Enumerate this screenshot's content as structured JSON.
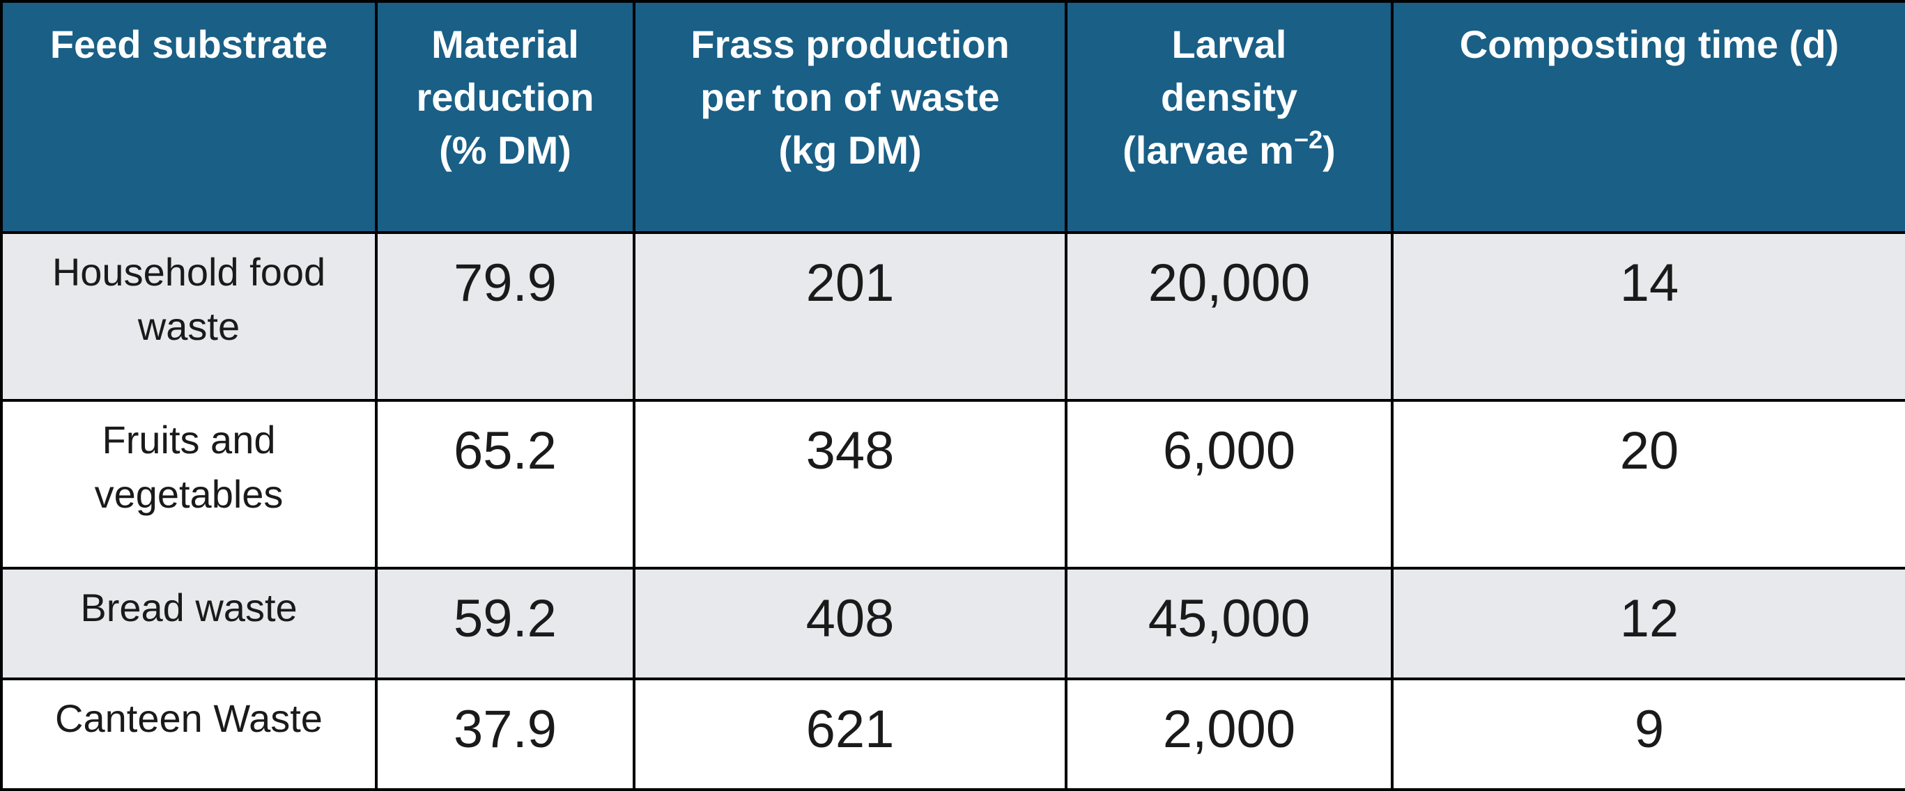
{
  "table": {
    "headers": [
      "Feed substrate",
      "Material\nreduction\n(% DM)",
      "Frass production\nper ton of waste\n(kg DM)",
      "Larval\ndensity\n(larvae m",
      "Composting time (d)"
    ],
    "header_superscript": "−2",
    "header_suffix": ")",
    "rows": [
      {
        "substrate": "Household food\nwaste",
        "reduction": "79.9",
        "frass": "201",
        "density": "20,000",
        "time": "14"
      },
      {
        "substrate": "Fruits and\nvegetables",
        "reduction": "65.2",
        "frass": "348",
        "density": "6,000",
        "time": "20"
      },
      {
        "substrate": "Bread waste",
        "reduction": "59.2",
        "frass": "408",
        "density": "45,000",
        "time": "12"
      },
      {
        "substrate": "Canteen Waste",
        "reduction": "37.9",
        "frass": "621",
        "density": "2,000",
        "time": "9"
      }
    ]
  },
  "colors": {
    "header_bg": "#195f86",
    "header_text": "#ffffff",
    "shaded_row_bg": "#e7e9ec",
    "border": "#000000"
  }
}
